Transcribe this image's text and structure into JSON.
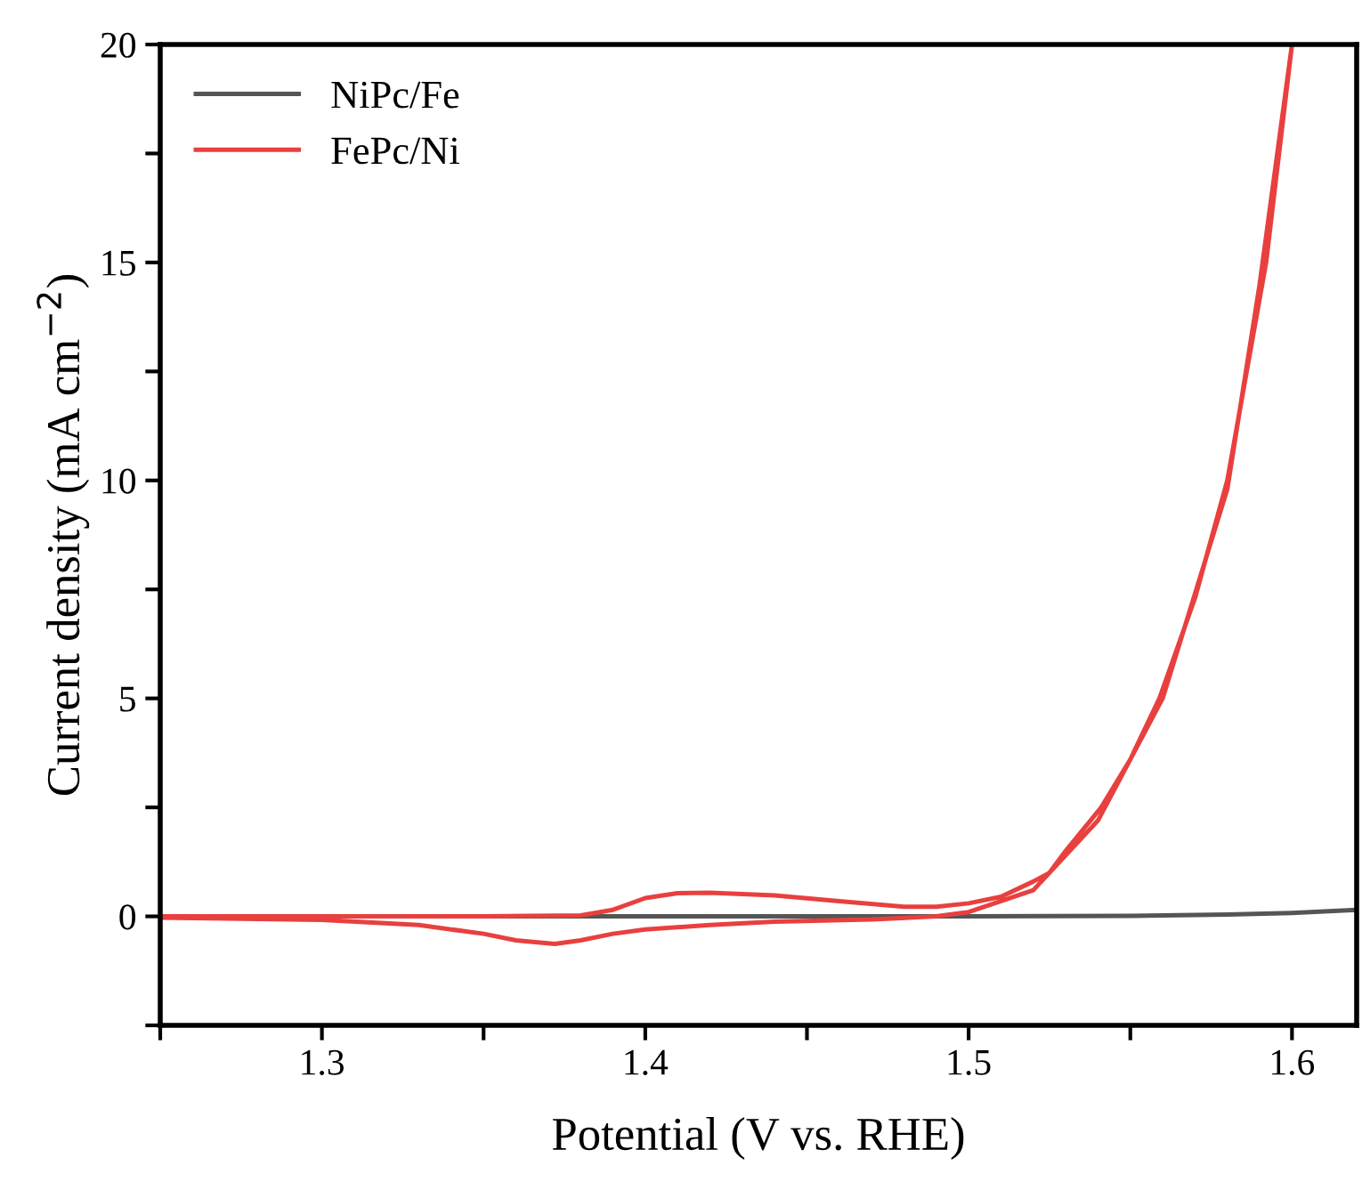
{
  "chart_data": {
    "type": "line",
    "xlabel": "Potential (V vs. RHE)",
    "ylabel": "Current density (mA cm$^{−2}$)",
    "xlim": [
      1.25,
      1.62
    ],
    "ylim": [
      -2.5,
      20
    ],
    "xticks": [
      {
        "value": 1.25,
        "label": null
      },
      1.3,
      {
        "value": 1.35,
        "label": null
      },
      1.4,
      {
        "value": 1.45,
        "label": null
      },
      1.5,
      {
        "value": 1.55,
        "label": null
      },
      1.6
    ],
    "yticks": [
      {
        "value": -2.5,
        "label": null
      },
      0,
      {
        "value": 2.5,
        "label": null
      },
      5,
      {
        "value": 7.5,
        "label": null
      },
      10,
      {
        "value": 12.5,
        "label": null
      },
      15,
      {
        "value": 17.5,
        "label": null
      },
      20
    ],
    "grid": false,
    "legend": "top left",
    "marker": "none",
    "line_style": "solid",
    "series": [
      {
        "name": "NiPc/Fe",
        "color": "#555555",
        "x": [
          1.25,
          1.3,
          1.35,
          1.4,
          1.45,
          1.5,
          1.55,
          1.58,
          1.6,
          1.62
        ],
        "values": [
          0,
          0,
          0,
          0,
          0,
          0,
          0.01,
          0.04,
          0.08,
          0.15
        ]
      },
      {
        "name": "FePc/Ni",
        "color": "#e8403f",
        "x": [
          1.25,
          1.3,
          1.35,
          1.38,
          1.39,
          1.4,
          1.41,
          1.42,
          1.44,
          1.46,
          1.48,
          1.49,
          1.5,
          1.51,
          1.52,
          1.525,
          1.53,
          1.541,
          1.55,
          1.559,
          1.57,
          1.58,
          1.592,
          1.6,
          1.59,
          1.58,
          1.56,
          1.54,
          1.52,
          1.5,
          1.49,
          1.47,
          1.44,
          1.42,
          1.4,
          1.39,
          1.38,
          1.372,
          1.36,
          1.35,
          1.33,
          1.3,
          1.25
        ],
        "values": [
          0,
          0,
          0,
          0.02,
          0.15,
          0.42,
          0.53,
          0.54,
          0.48,
          0.35,
          0.22,
          0.22,
          0.3,
          0.45,
          0.8,
          1.0,
          1.5,
          2.5,
          3.6,
          5,
          7.3,
          10,
          15,
          20,
          14.5,
          9.8,
          5,
          2.2,
          0.6,
          0.1,
          0,
          -0.07,
          -0.12,
          -0.2,
          -0.3,
          -0.4,
          -0.55,
          -0.63,
          -0.55,
          -0.4,
          -0.2,
          -0.08,
          -0.03
        ]
      }
    ]
  }
}
